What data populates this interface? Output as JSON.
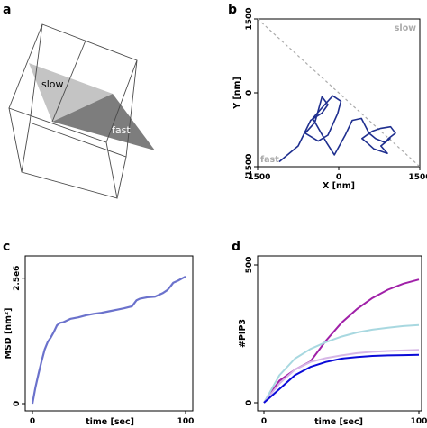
{
  "panels": {
    "a": {
      "label": "a",
      "slow_label": "slow",
      "fast_label": "fast"
    },
    "b": {
      "label": "b",
      "xlabel": "X [nm]",
      "ylabel": "Y [nm]",
      "slow_label": "slow",
      "fast_label": "fast"
    },
    "c": {
      "label": "c",
      "xlabel": "time [sec]",
      "ylabel": "MSD [nm²]"
    },
    "d": {
      "label": "d",
      "xlabel": "time [sec]",
      "ylabel": "#PIP3"
    }
  },
  "chart_data": [
    {
      "panel": "a",
      "type": "other",
      "description_labels": [
        "slow",
        "fast"
      ],
      "colors": {
        "slow_region": "#bdbdbd",
        "fast_region": "#7a7a7a",
        "edges": "#444444"
      }
    },
    {
      "panel": "b",
      "type": "line",
      "xlabel": "X [nm]",
      "ylabel": "Y [nm]",
      "xlim": [
        -1500,
        1500
      ],
      "ylim": [
        -1500,
        1500
      ],
      "xticks": [
        -1500,
        0,
        1500
      ],
      "yticks": [
        -1500,
        0,
        1500
      ],
      "tick_labels_x": [
        "-1500",
        "0",
        "1500"
      ],
      "tick_labels_y": [
        "-1500",
        "0",
        "1500"
      ],
      "annotations": [
        "slow",
        "fast"
      ],
      "diagonal": {
        "from": [
          -1500,
          1500
        ],
        "to": [
          1500,
          -1500
        ],
        "style": "dashed",
        "color": "#aaaaaa"
      },
      "series": [
        {
          "color": "#1f2f8f",
          "x": [
            -1100,
            -750,
            -520,
            -310,
            -200,
            -310,
            -440,
            -620,
            -380,
            -200,
            -20,
            40,
            -110,
            -300,
            -480,
            -220,
            -80,
            120,
            250,
            420,
            560,
            680,
            840,
            950,
            780,
            900,
            650,
            520,
            430,
            620,
            780,
            960,
            1050,
            920,
            860
          ],
          "y": [
            -1400,
            -1080,
            -560,
            -410,
            -240,
            -80,
            -600,
            -820,
            -980,
            -860,
            -420,
            -170,
            -60,
            -290,
            -520,
            -1020,
            -1260,
            -860,
            -560,
            -520,
            -820,
            -930,
            -1000,
            -930,
            -1080,
            -1230,
            -1140,
            -1010,
            -930,
            -780,
            -720,
            -690,
            -820,
            -930,
            -1010
          ]
        }
      ]
    },
    {
      "panel": "c",
      "type": "line",
      "xlabel": "time [sec]",
      "ylabel": "MSD [nm²]",
      "xlim": [
        0,
        100
      ],
      "ylim": [
        0,
        2800000
      ],
      "xticks": [
        0,
        100
      ],
      "tick_labels_x": [
        "0",
        "100"
      ],
      "yticks": [
        0,
        2500000
      ],
      "tick_labels_y": [
        "0",
        "2.5e6"
      ],
      "series": [
        {
          "color": "#6b72cc",
          "x": [
            0,
            2,
            4,
            6,
            8,
            10,
            12,
            14,
            16,
            18,
            20,
            25,
            30,
            35,
            40,
            45,
            50,
            55,
            60,
            65,
            68,
            70,
            75,
            80,
            85,
            88,
            90,
            92,
            95,
            98,
            100
          ],
          "y": [
            0,
            330000,
            600000,
            850000,
            1080000,
            1230000,
            1320000,
            1430000,
            1560000,
            1610000,
            1620000,
            1690000,
            1720000,
            1760000,
            1790000,
            1810000,
            1840000,
            1870000,
            1900000,
            1940000,
            2060000,
            2090000,
            2120000,
            2130000,
            2200000,
            2260000,
            2330000,
            2410000,
            2450000,
            2500000,
            2530000
          ]
        }
      ]
    },
    {
      "panel": "d",
      "type": "line",
      "xlabel": "time [sec]",
      "ylabel": "#PIP3",
      "xlim": [
        0,
        100
      ],
      "ylim": [
        0,
        500
      ],
      "xticks": [
        0,
        100
      ],
      "tick_labels_x": [
        "0",
        "100"
      ],
      "yticks": [
        0,
        500
      ],
      "tick_labels_y": [
        "0",
        "500"
      ],
      "series": [
        {
          "color": "#a020a8",
          "x": [
            0,
            10,
            20,
            30,
            40,
            50,
            60,
            70,
            80,
            90,
            100
          ],
          "y": [
            0,
            80,
            120,
            150,
            225,
            290,
            340,
            380,
            410,
            432,
            447
          ]
        },
        {
          "color": "#a8d8e0",
          "x": [
            0,
            10,
            20,
            30,
            40,
            50,
            60,
            70,
            80,
            90,
            100
          ],
          "y": [
            0,
            100,
            160,
            195,
            220,
            240,
            255,
            265,
            272,
            278,
            282
          ]
        },
        {
          "color": "#d6b6e6",
          "x": [
            0,
            10,
            20,
            30,
            40,
            50,
            60,
            70,
            80,
            90,
            100
          ],
          "y": [
            0,
            70,
            120,
            148,
            162,
            172,
            180,
            185,
            188,
            190,
            192
          ]
        },
        {
          "color": "#0a0ad8",
          "x": [
            0,
            10,
            20,
            30,
            40,
            50,
            60,
            70,
            80,
            90,
            100
          ],
          "y": [
            0,
            50,
            100,
            130,
            148,
            160,
            166,
            170,
            172,
            173,
            174
          ]
        }
      ]
    }
  ]
}
